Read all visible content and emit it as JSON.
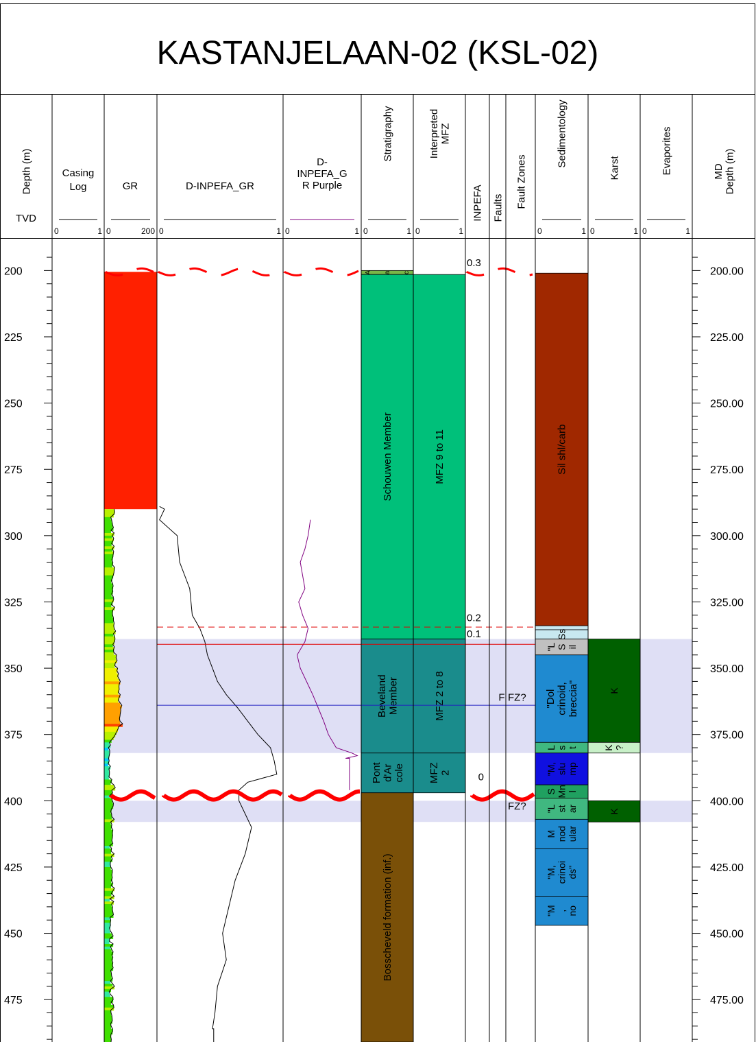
{
  "title": "KASTANJELAAN-02 (KSL-02)",
  "tracks": [
    {
      "id": "depth",
      "label": "Depth (m)",
      "sublabel": "TVD"
    },
    {
      "id": "casing",
      "label": "Casing Log",
      "scale": [
        "0",
        "1"
      ]
    },
    {
      "id": "gr",
      "label": "GR",
      "scale": [
        "0",
        "200"
      ]
    },
    {
      "id": "inpefa",
      "label": "D-INPEFA_GR",
      "scale": [
        "0",
        "1"
      ]
    },
    {
      "id": "purple",
      "label": "D-INPEFA_GR Purple",
      "scale": [
        "0",
        "1"
      ]
    },
    {
      "id": "strat",
      "label": "Stratigraphy",
      "scale": [
        "0",
        "1"
      ]
    },
    {
      "id": "mfz",
      "label": "Interpreted MFZ",
      "scale": [
        "0",
        "1"
      ]
    },
    {
      "id": "inp",
      "label": "INPEFA"
    },
    {
      "id": "faults",
      "label": "Faults"
    },
    {
      "id": "fz",
      "label": "Fault Zones"
    },
    {
      "id": "sed",
      "label": "Sedimentology",
      "scale": [
        "0",
        "1"
      ]
    },
    {
      "id": "karst",
      "label": "Karst",
      "scale": [
        "0",
        "1"
      ]
    },
    {
      "id": "evap",
      "label": "Evaporites",
      "scale": [
        "0",
        "1"
      ]
    },
    {
      "id": "md",
      "label": "MD Depth (m)"
    }
  ],
  "chart_data": {
    "type": "well-log",
    "depth_range": [
      188,
      491
    ],
    "depth_ticks": [
      200,
      225,
      250,
      275,
      300,
      325,
      350,
      375,
      400,
      425,
      450,
      475
    ],
    "md_ticks": [
      "200.00",
      "225.00",
      "250.00",
      "275.00",
      "300.00",
      "325.00",
      "350.00",
      "375.00",
      "400.00",
      "425.00",
      "450.00",
      "475.00"
    ],
    "gr_curve": {
      "depth_start": 290,
      "depth_end": 491,
      "step": 1,
      "values": [
        38,
        40,
        36,
        25,
        28,
        30,
        32,
        35,
        26,
        38,
        30,
        36,
        33,
        28,
        38,
        31,
        36,
        34,
        33,
        29,
        33,
        31,
        40,
        38,
        37,
        34,
        31,
        27,
        32,
        34,
        31,
        33,
        28,
        34,
        36,
        32,
        27,
        40,
        33,
        31,
        32,
        35,
        35,
        38,
        36,
        38,
        43,
        35,
        40,
        41,
        39,
        33,
        39,
        35,
        36,
        47,
        45,
        49,
        42,
        40,
        51,
        48,
        54,
        51,
        56,
        61,
        57,
        56,
        57,
        53,
        61,
        57,
        53,
        60,
        67,
        62,
        63,
        61,
        60,
        58,
        60,
        70,
        55,
        52,
        47,
        42,
        36,
        28,
        20,
        24,
        16,
        21,
        21,
        19,
        17,
        19,
        15,
        24,
        18,
        20,
        20,
        18,
        29,
        25,
        36,
        42,
        29,
        32,
        22,
        29,
        31,
        35,
        34,
        28,
        25,
        28,
        29,
        38,
        25,
        29,
        27,
        33,
        31,
        32,
        31,
        29,
        33,
        21,
        28,
        26,
        38,
        27,
        31,
        24,
        23,
        25,
        31,
        31,
        29,
        31,
        27,
        33,
        26,
        39,
        33,
        27,
        38,
        21,
        36,
        28,
        32,
        31,
        33,
        35,
        22,
        25,
        23,
        24,
        20,
        23,
        29,
        34,
        21,
        20,
        34,
        24,
        28,
        34,
        29,
        33,
        29,
        33,
        31,
        34,
        25,
        27,
        28,
        32,
        24,
        32,
        39,
        26,
        19,
        23,
        33,
        34,
        26,
        35,
        37,
        25,
        26,
        29,
        30,
        31,
        25,
        26,
        32,
        32,
        26,
        25,
        27,
        26
      ]
    },
    "inpefa_curve": {
      "points": [
        [
          289,
          0.02
        ],
        [
          290,
          0.06
        ],
        [
          294,
          0.02
        ],
        [
          300,
          0.16
        ],
        [
          310,
          0.18
        ],
        [
          320,
          0.26
        ],
        [
          330,
          0.28
        ],
        [
          335,
          0.34
        ],
        [
          340,
          0.38
        ],
        [
          345,
          0.4
        ],
        [
          350,
          0.44
        ],
        [
          355,
          0.48
        ],
        [
          360,
          0.55
        ],
        [
          365,
          0.64
        ],
        [
          370,
          0.72
        ],
        [
          375,
          0.8
        ],
        [
          380,
          0.9
        ],
        [
          385,
          0.93
        ],
        [
          390,
          0.95
        ],
        [
          393,
          0.72
        ],
        [
          396,
          0.65
        ],
        [
          400,
          0.65
        ],
        [
          405,
          0.7
        ],
        [
          410,
          0.75
        ],
        [
          420,
          0.7
        ],
        [
          430,
          0.62
        ],
        [
          440,
          0.57
        ],
        [
          450,
          0.52
        ],
        [
          460,
          0.55
        ],
        [
          470,
          0.48
        ],
        [
          480,
          0.46
        ],
        [
          486,
          0.44
        ],
        [
          486,
          0.45
        ],
        [
          491,
          0.45
        ]
      ]
    },
    "purple_curve": {
      "points": [
        [
          294,
          0.35
        ],
        [
          300,
          0.32
        ],
        [
          305,
          0.28
        ],
        [
          310,
          0.22
        ],
        [
          315,
          0.25
        ],
        [
          320,
          0.28
        ],
        [
          325,
          0.2
        ],
        [
          330,
          0.25
        ],
        [
          335,
          0.32
        ],
        [
          340,
          0.28
        ],
        [
          345,
          0.18
        ],
        [
          350,
          0.22
        ],
        [
          355,
          0.3
        ],
        [
          360,
          0.38
        ],
        [
          365,
          0.45
        ],
        [
          370,
          0.52
        ],
        [
          375,
          0.58
        ],
        [
          380,
          0.68
        ],
        [
          382,
          0.88
        ],
        [
          383,
          0.95
        ],
        [
          384,
          0.8
        ],
        [
          384,
          0.85
        ],
        [
          396,
          0.85
        ]
      ]
    },
    "unconformities": [
      {
        "depth": 200,
        "style": "dashed-wave"
      },
      {
        "depth": 398,
        "style": "bold-wave"
      }
    ],
    "horizon_lines": [
      {
        "depth": 334.5,
        "color": "#e00000",
        "style": "dashed"
      },
      {
        "depth": 341,
        "color": "#e00000",
        "style": "solid"
      },
      {
        "depth": 364,
        "color": "#2020c0",
        "style": "solid"
      }
    ],
    "shaded_zones": [
      {
        "top": 339,
        "base": 382
      },
      {
        "top": 400,
        "base": 408
      }
    ],
    "stratigraphy": [
      {
        "top": 200,
        "base": 201.5,
        "color": "#7ab648",
        "label": ""
      },
      {
        "top": 201.5,
        "base": 339,
        "color": "#00c07a",
        "label": "Schouwen Member"
      },
      {
        "top": 339,
        "base": 382,
        "color": "#1a8c8c",
        "label": "Beveland Member"
      },
      {
        "top": 382,
        "base": 397,
        "color": "#1a8c8c",
        "label": "Pont d'Ar cole"
      },
      {
        "top": 397,
        "base": 491,
        "color": "#7a5008",
        "label": "Bosscheveld formation (inf.)"
      }
    ],
    "strat_top_letters": [
      "A",
      "a",
      "c"
    ],
    "mfz": [
      {
        "top": 201.5,
        "base": 339,
        "color": "#00c07a",
        "label": "MFZ 9 to 11"
      },
      {
        "top": 339,
        "base": 382,
        "color": "#1a8c8c",
        "label": "MFZ 2 to 8"
      },
      {
        "top": 382,
        "base": 397,
        "color": "#1a8c8c",
        "label": "MFZ 2"
      }
    ],
    "inpefa_labels": [
      {
        "depth": 197,
        "text": "0.3"
      },
      {
        "depth": 331,
        "text": "0.2"
      },
      {
        "depth": 337,
        "text": "0.1"
      },
      {
        "depth": 391,
        "text": "0"
      }
    ],
    "fault_labels": [
      {
        "depth": 361,
        "text": "F"
      }
    ],
    "fault_zone_labels": [
      {
        "depth": 361,
        "text": "FZ?"
      },
      {
        "depth": 402,
        "text": "FZ?"
      }
    ],
    "sedimentology": [
      {
        "top": 201,
        "base": 334,
        "color": "#a02800",
        "label": "Sil shl/carb"
      },
      {
        "top": 334,
        "base": 335.5,
        "color": "#c8e8f0",
        "label": ""
      },
      {
        "top": 335.5,
        "base": 339,
        "color": "#c8e8f0",
        "label": "Ss"
      },
      {
        "top": 339,
        "base": 345,
        "color": "#c0c0c0",
        "label": "\"L S il"
      },
      {
        "top": 345,
        "base": 378,
        "color": "#1f8ad0",
        "label": "\"Dol crinoid, breccia\""
      },
      {
        "top": 378,
        "base": 382,
        "color": "#40b880",
        "label": "L s t"
      },
      {
        "top": 382,
        "base": 394,
        "color": "#1010e0",
        "label": "\"M, slu mp"
      },
      {
        "top": 394,
        "base": 399,
        "color": "#20a060",
        "label": "S Mn l"
      },
      {
        "top": 399,
        "base": 407,
        "color": "#40b880",
        "label": "\"L st ar"
      },
      {
        "top": 407,
        "base": 418,
        "color": "#1f8ad0",
        "label": "M nod ular"
      },
      {
        "top": 418,
        "base": 436,
        "color": "#1f8ad0",
        "label": "\"M, crinoi ds\""
      },
      {
        "top": 436,
        "base": 447,
        "color": "#1f8ad0",
        "label": "\"M , no"
      }
    ],
    "karst": [
      {
        "top": 339,
        "base": 378,
        "color": "#006000",
        "label": "K"
      },
      {
        "top": 378,
        "base": 382,
        "color": "#c8f0c8",
        "label": "K ?"
      },
      {
        "top": 400,
        "base": 408,
        "color": "#006000",
        "label": "K"
      }
    ]
  }
}
